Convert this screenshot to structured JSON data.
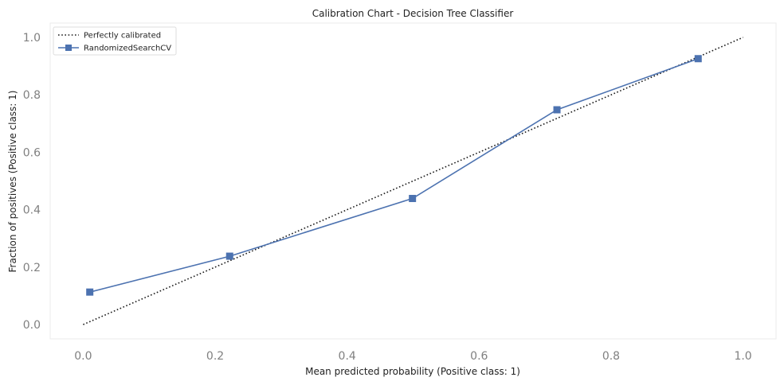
{
  "chart_data": {
    "type": "line",
    "title": "Calibration Chart - Decision Tree Classifier",
    "xlabel": "Mean predicted probability (Positive class: 1)",
    "ylabel": "Fraction of positives (Positive class: 1)",
    "xlim": [
      -0.05,
      1.05
    ],
    "ylim": [
      -0.05,
      1.05
    ],
    "xticks": [
      0.0,
      0.2,
      0.4,
      0.6,
      0.8,
      1.0
    ],
    "yticks": [
      0.0,
      0.2,
      0.4,
      0.6,
      0.8,
      1.0
    ],
    "grid": false,
    "legend_position": "top-left",
    "series": [
      {
        "name": "Perfectly calibrated",
        "style": "dotted",
        "color": "#1a1a1a",
        "x": [
          0.0,
          1.0
        ],
        "y": [
          0.0,
          1.0
        ]
      },
      {
        "name": "RandomizedSearchCV",
        "style": "solid",
        "marker": "square",
        "color": "#4c72b0",
        "x": [
          0.01,
          0.222,
          0.499,
          0.718,
          0.932
        ],
        "y": [
          0.113,
          0.238,
          0.439,
          0.748,
          0.926
        ]
      }
    ]
  }
}
